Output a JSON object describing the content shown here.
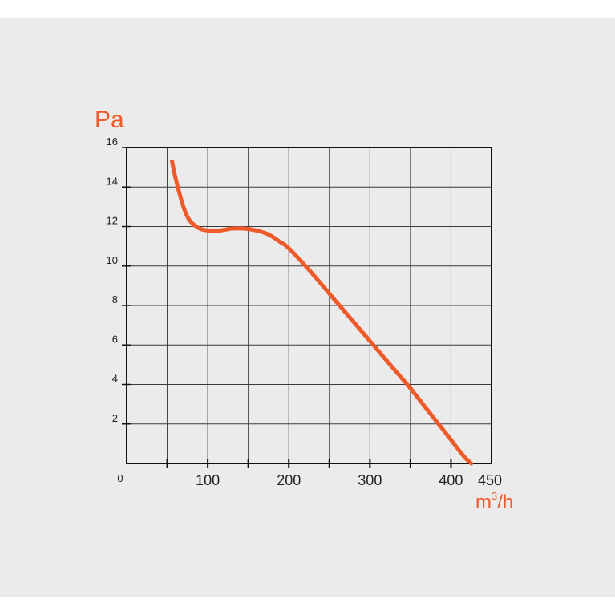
{
  "colors": {
    "background": "#ebebeb",
    "curve": "#ee5a2a",
    "unit_labels": "#ee5a2a",
    "grid": "#3a3a3a",
    "text": "#222222"
  },
  "chart_data": {
    "type": "line",
    "title": "",
    "ylabel": "Pa",
    "xlabel_base": "m",
    "xlabel_superscript": "3",
    "xlabel_suffix": "/h",
    "xlim": [
      0,
      450
    ],
    "ylim": [
      0,
      16
    ],
    "grid": true,
    "x_ticks": [
      {
        "value": 0,
        "label": "0"
      },
      {
        "value": 100,
        "label": "100"
      },
      {
        "value": 200,
        "label": "200"
      },
      {
        "value": 300,
        "label": "300"
      },
      {
        "value": 400,
        "label": "400"
      },
      {
        "value": 450,
        "label": "450"
      }
    ],
    "y_ticks": [
      {
        "value": 2,
        "label": "2"
      },
      {
        "value": 4,
        "label": "4"
      },
      {
        "value": 6,
        "label": "6"
      },
      {
        "value": 8,
        "label": "8"
      },
      {
        "value": 10,
        "label": "10"
      },
      {
        "value": 12,
        "label": "12"
      },
      {
        "value": 14,
        "label": "14"
      },
      {
        "value": 16,
        "label": "16"
      }
    ],
    "series": [
      {
        "x": [
          56,
          60,
          65,
          70,
          75,
          80,
          90,
          100,
          115,
          130,
          145,
          160,
          175,
          190,
          200,
          225,
          250,
          275,
          300,
          325,
          350,
          375,
          400,
          415,
          425
        ],
        "y": [
          15.3,
          14.5,
          13.7,
          13.0,
          12.5,
          12.2,
          11.9,
          11.8,
          11.8,
          11.9,
          11.9,
          11.8,
          11.6,
          11.2,
          10.9,
          9.8,
          8.6,
          7.4,
          6.2,
          5.0,
          3.8,
          2.5,
          1.2,
          0.4,
          0.0
        ]
      }
    ]
  }
}
